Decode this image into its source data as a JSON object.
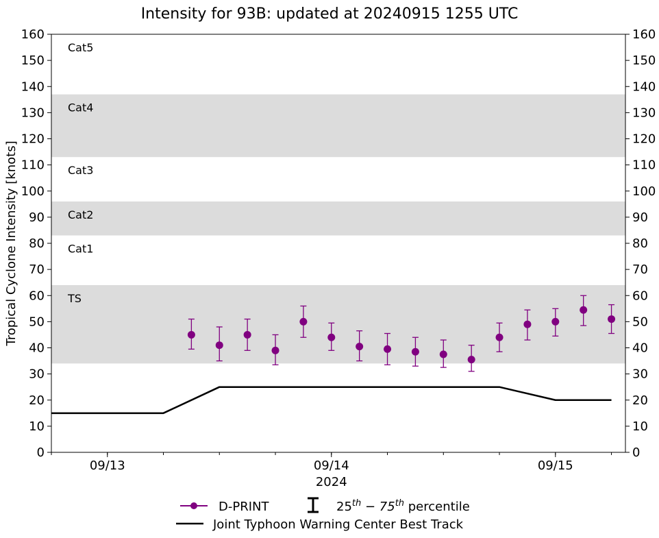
{
  "chart_data": {
    "type": "line",
    "title": "Intensity for 93B: updated at 20240915 1255 UTC",
    "ylabel": "Tropical Cyclone Intensity [knots]",
    "xlabel": "2024",
    "ylim": [
      0,
      160
    ],
    "yticks": [
      0,
      10,
      20,
      30,
      40,
      50,
      60,
      70,
      80,
      90,
      100,
      110,
      120,
      130,
      140,
      150,
      160
    ],
    "xlim": [
      "2024-09-12 18:00",
      "2024-09-15 07:30"
    ],
    "xticks": [
      {
        "time": "2024-09-13 00:00",
        "label": "09/13"
      },
      {
        "time": "2024-09-14 00:00",
        "label": "09/14"
      },
      {
        "time": "2024-09-15 00:00",
        "label": "09/15"
      }
    ],
    "minor_ticks_hours": 6,
    "category_bands": [
      {
        "label": "TS",
        "from": 34,
        "to": 64,
        "shaded": true
      },
      {
        "label": "Cat1",
        "from": 64,
        "to": 83,
        "shaded": false
      },
      {
        "label": "Cat2",
        "from": 83,
        "to": 96,
        "shaded": true
      },
      {
        "label": "Cat3",
        "from": 96,
        "to": 113,
        "shaded": false
      },
      {
        "label": "Cat4",
        "from": 113,
        "to": 137,
        "shaded": true
      },
      {
        "label": "Cat5",
        "from": 137,
        "to": 160,
        "shaded": false
      }
    ],
    "series": [
      {
        "name": "D-PRINT",
        "color": "#800080",
        "style": "points-with-errorbars",
        "points": [
          {
            "time": "2024-09-13 09:00",
            "value": 45,
            "p25": 39.5,
            "p75": 51
          },
          {
            "time": "2024-09-13 12:00",
            "value": 41,
            "p25": 35,
            "p75": 48
          },
          {
            "time": "2024-09-13 15:00",
            "value": 45,
            "p25": 39,
            "p75": 51
          },
          {
            "time": "2024-09-13 18:00",
            "value": 39,
            "p25": 33.5,
            "p75": 45
          },
          {
            "time": "2024-09-13 21:00",
            "value": 50,
            "p25": 44,
            "p75": 56
          },
          {
            "time": "2024-09-14 00:00",
            "value": 44,
            "p25": 39,
            "p75": 49.5
          },
          {
            "time": "2024-09-14 03:00",
            "value": 40.5,
            "p25": 35,
            "p75": 46.5
          },
          {
            "time": "2024-09-14 06:00",
            "value": 39.5,
            "p25": 33.5,
            "p75": 45.5
          },
          {
            "time": "2024-09-14 09:00",
            "value": 38.5,
            "p25": 33,
            "p75": 44
          },
          {
            "time": "2024-09-14 12:00",
            "value": 37.5,
            "p25": 32.5,
            "p75": 43
          },
          {
            "time": "2024-09-14 15:00",
            "value": 35.5,
            "p25": 31,
            "p75": 41
          },
          {
            "time": "2024-09-14 18:00",
            "value": 44,
            "p25": 38.5,
            "p75": 49.5
          },
          {
            "time": "2024-09-14 21:00",
            "value": 49,
            "p25": 43,
            "p75": 54.5
          },
          {
            "time": "2024-09-15 00:00",
            "value": 50,
            "p25": 44.5,
            "p75": 55
          },
          {
            "time": "2024-09-15 03:00",
            "value": 54.5,
            "p25": 48.5,
            "p75": 60
          },
          {
            "time": "2024-09-15 06:00",
            "value": 51,
            "p25": 45.5,
            "p75": 56.5
          }
        ]
      },
      {
        "name": "Joint Typhoon Warning Center Best Track",
        "color": "#000000",
        "style": "line",
        "points": [
          {
            "time": "2024-09-12 18:00",
            "value": 15
          },
          {
            "time": "2024-09-13 06:00",
            "value": 15
          },
          {
            "time": "2024-09-13 12:00",
            "value": 25
          },
          {
            "time": "2024-09-14 18:00",
            "value": 25
          },
          {
            "time": "2024-09-15 00:00",
            "value": 20
          },
          {
            "time": "2024-09-15 06:00",
            "value": 20
          }
        ]
      }
    ],
    "legend": {
      "placement": "bottom-center",
      "dprint_label": "D-PRINT",
      "percentile_label_pre": "25",
      "percentile_sup1": "th",
      "percentile_mid": " − 75",
      "percentile_sup2": "th",
      "percentile_post": " percentile",
      "besttrack_label": "Joint Typhoon Warning Center Best Track"
    },
    "grid": false,
    "band_color": "#dcdcdc"
  }
}
